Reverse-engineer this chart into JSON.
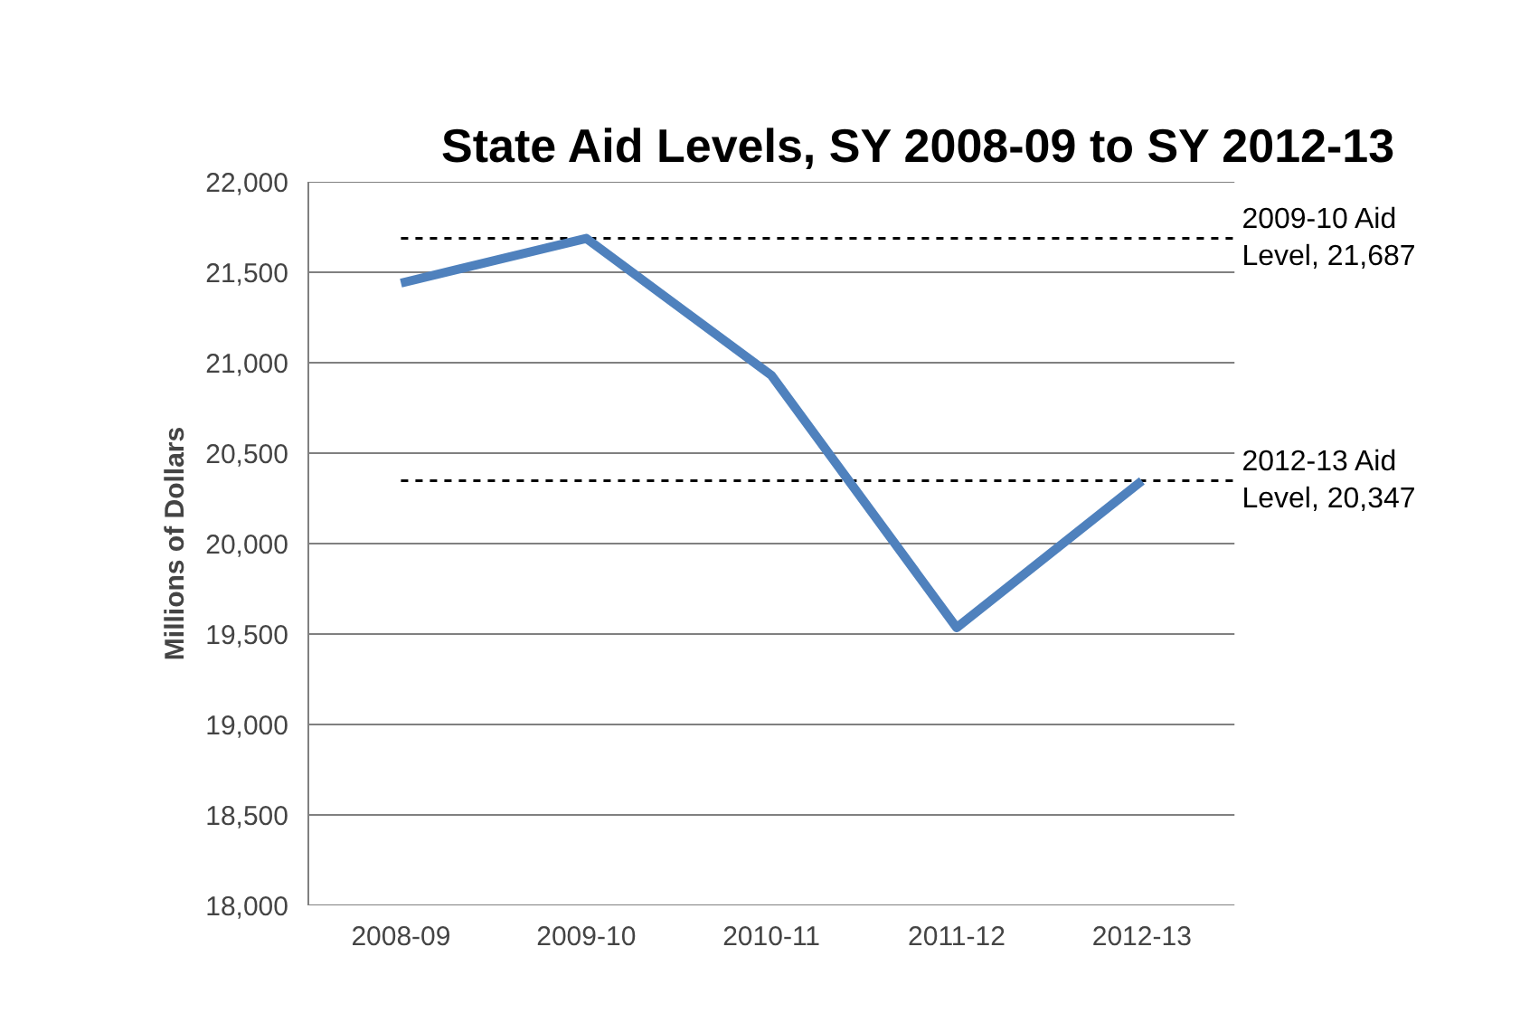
{
  "chart_data": {
    "type": "line",
    "title": "State Aid Levels, SY 2008-09 to SY 2012-13",
    "ylabel": "Millions of Dollars",
    "categories": [
      "2008-09",
      "2009-10",
      "2010-11",
      "2011-12",
      "2012-13"
    ],
    "series": [
      {
        "color": "#4f81bd",
        "values": [
          21440,
          21687,
          20930,
          19535,
          20347
        ]
      }
    ],
    "ylim": [
      18000,
      22000
    ],
    "yticks": [
      {
        "value": 18000,
        "label": "18,000"
      },
      {
        "value": 18500,
        "label": "18,500"
      },
      {
        "value": 19000,
        "label": "19,000"
      },
      {
        "value": 19500,
        "label": "19,500"
      },
      {
        "value": 20000,
        "label": "20,000"
      },
      {
        "value": 20500,
        "label": "20,500"
      },
      {
        "value": 21000,
        "label": "21,000"
      },
      {
        "value": 21500,
        "label": "21,500"
      },
      {
        "value": 22000,
        "label": "22,000"
      }
    ],
    "ref_lines": [
      {
        "axis": "y",
        "value": 21687,
        "label": "2009-10 Aid Level, 21,687",
        "color": "#000000",
        "line_style": "dashed"
      },
      {
        "axis": "y",
        "value": 20347,
        "label": "2012-13 Aid Level, 20,347",
        "color": "#000000",
        "line_style": "dashed"
      }
    ],
    "grid": "y",
    "marker": "none",
    "line_style": "solid"
  }
}
